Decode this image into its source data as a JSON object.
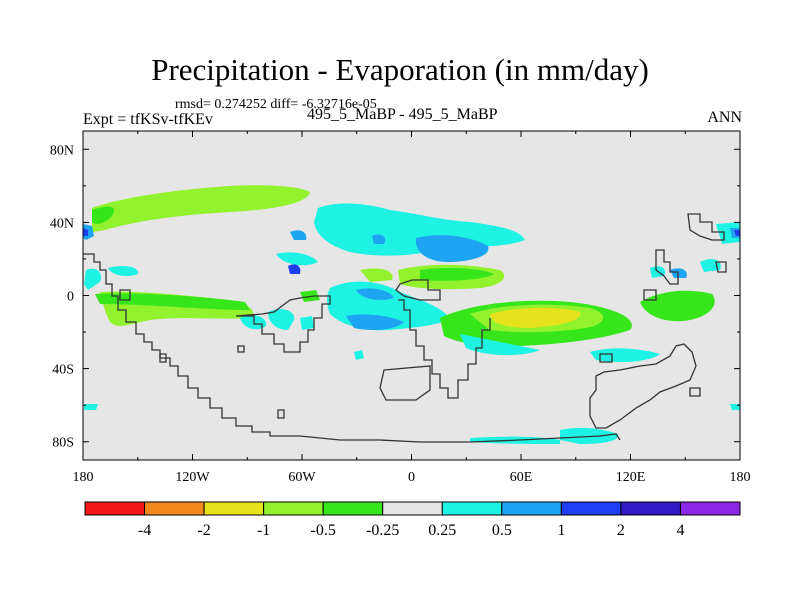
{
  "title": "Precipitation - Evaporation (in mm/day)",
  "stats_line": "rmsd= 0.274252  diff= -6.32716e-05",
  "left_label": "Expt = tfKSv-tfKEv",
  "center_label": "495_5_MaBP - 495_5_MaBP",
  "right_label": "ANN",
  "axes": {
    "lat_labels": [
      "80N",
      "40N",
      "0",
      "40S",
      "80S"
    ],
    "lon_labels": [
      "180",
      "120W",
      "60W",
      "0",
      "60E",
      "120E",
      "180"
    ]
  },
  "colorbar": {
    "colors": [
      "#f2161a",
      "#f2891d",
      "#e6e31c",
      "#92f22d",
      "#36e61b",
      "#e6e6e6",
      "#1ef2e2",
      "#1ea5f2",
      "#1e3ef2",
      "#3318c6",
      "#8c27e6"
    ],
    "labels": [
      "-4",
      "-2",
      "-1",
      "-0.5",
      "-0.25",
      "0.25",
      "0.5",
      "1",
      "2",
      "4"
    ]
  },
  "colors": {
    "background": "#e6e6e6",
    "coast": "#333333"
  }
}
